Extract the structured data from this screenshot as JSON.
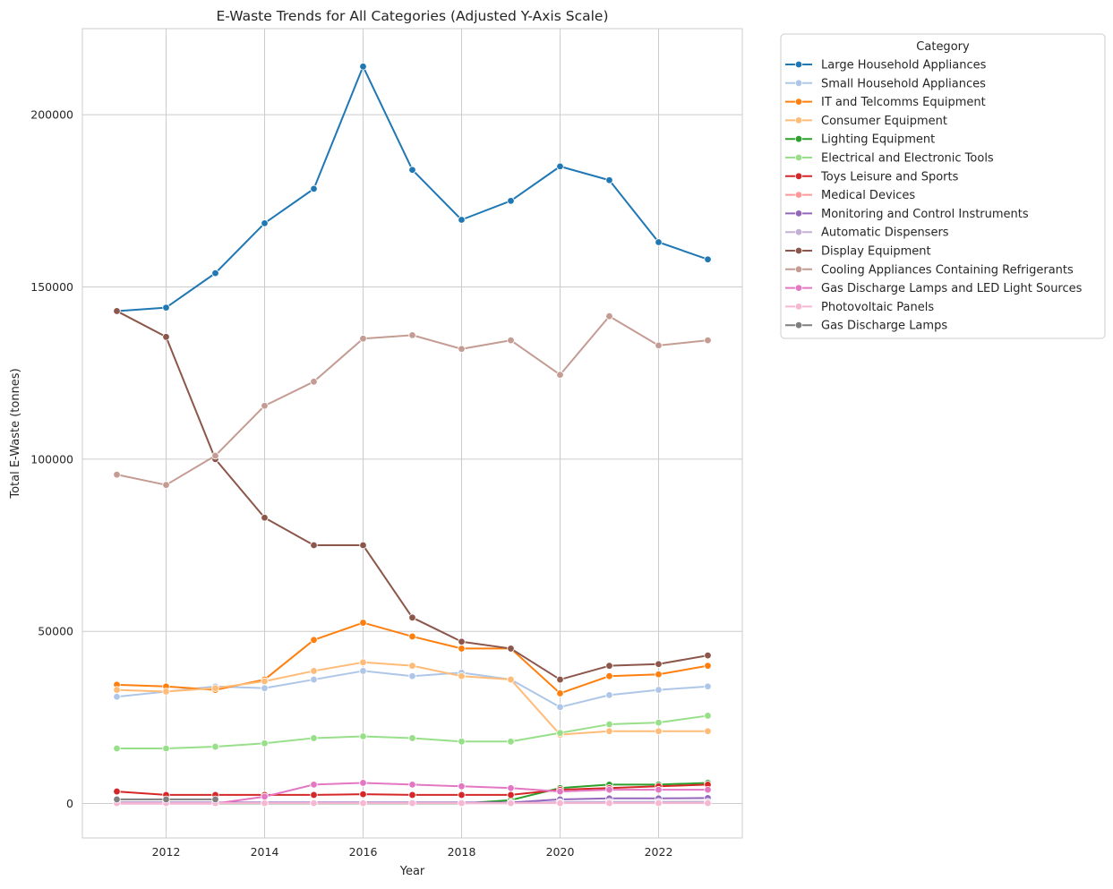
{
  "chart_data": {
    "type": "line",
    "title": "E-Waste Trends for All Categories (Adjusted Y-Axis Scale)",
    "xlabel": "Year",
    "ylabel": "Total E-Waste (tonnes)",
    "xlim": [
      2010.3,
      2023.7
    ],
    "ylim": [
      -10000,
      225000
    ],
    "x_ticks": [
      2012,
      2014,
      2016,
      2018,
      2020,
      2022
    ],
    "y_ticks": [
      0,
      50000,
      100000,
      150000,
      200000
    ],
    "grid": true,
    "legend": {
      "title": "Category",
      "placement": "outside-right"
    },
    "x": [
      2011,
      2012,
      2013,
      2014,
      2015,
      2016,
      2017,
      2018,
      2019,
      2020,
      2021,
      2022,
      2023
    ],
    "series": [
      {
        "name": "Large Household Appliances",
        "color": "#1f77b4",
        "values": [
          143000,
          144000,
          154000,
          168500,
          178500,
          214000,
          184000,
          169500,
          175000,
          185000,
          181000,
          163000,
          158000
        ]
      },
      {
        "name": "Small Household Appliances",
        "color": "#aec7e8",
        "values": [
          31000,
          32500,
          34000,
          33500,
          36000,
          38500,
          37000,
          38000,
          36000,
          28000,
          31500,
          33000,
          34000
        ]
      },
      {
        "name": "IT and Telcomms Equipment",
        "color": "#ff7f0e",
        "values": [
          34500,
          34000,
          33000,
          36000,
          47500,
          52500,
          48500,
          45000,
          45000,
          32000,
          37000,
          37500,
          40000
        ]
      },
      {
        "name": "Consumer Equipment",
        "color": "#ffbb78",
        "values": [
          33000,
          32500,
          33500,
          35500,
          38500,
          41000,
          40000,
          37000,
          36000,
          20000,
          21000,
          21000,
          21000
        ]
      },
      {
        "name": "Lighting Equipment",
        "color": "#2ca02c",
        "values": [
          0,
          0,
          0,
          0,
          0,
          0,
          0,
          0,
          1000,
          4500,
          5500,
          5500,
          6000
        ]
      },
      {
        "name": "Electrical and Electronic Tools",
        "color": "#98df8a",
        "values": [
          16000,
          16000,
          16500,
          17500,
          19000,
          19500,
          19000,
          18000,
          18000,
          20500,
          23000,
          23500,
          25500
        ]
      },
      {
        "name": "Toys Leisure and Sports",
        "color": "#d62728",
        "values": [
          3500,
          2500,
          2500,
          2500,
          2500,
          2700,
          2500,
          2500,
          2500,
          4000,
          4500,
          5000,
          5500
        ]
      },
      {
        "name": "Medical Devices",
        "color": "#ff9896",
        "values": [
          100,
          100,
          100,
          100,
          100,
          100,
          100,
          100,
          100,
          300,
          400,
          400,
          500
        ]
      },
      {
        "name": "Monitoring and Control Instruments",
        "color": "#9467bd",
        "values": [
          300,
          300,
          300,
          300,
          300,
          300,
          300,
          300,
          300,
          1200,
          1500,
          1500,
          1600
        ]
      },
      {
        "name": "Automatic Dispensers",
        "color": "#c5b0d5",
        "values": [
          100,
          100,
          100,
          100,
          100,
          100,
          100,
          100,
          100,
          400,
          500,
          500,
          500
        ]
      },
      {
        "name": "Display Equipment",
        "color": "#8c564b",
        "values": [
          143000,
          135500,
          100000,
          83000,
          75000,
          75000,
          54000,
          47000,
          45000,
          36000,
          40000,
          40500,
          43000
        ]
      },
      {
        "name": "Cooling Appliances Containing Refrigerants",
        "color": "#c49c94",
        "values": [
          95500,
          92500,
          101000,
          115500,
          122500,
          135000,
          136000,
          132000,
          134500,
          124500,
          141500,
          133000,
          134500
        ]
      },
      {
        "name": "Gas Discharge Lamps and LED Light Sources",
        "color": "#e377c2",
        "values": [
          0,
          0,
          0,
          2000,
          5500,
          6000,
          5500,
          5000,
          4500,
          3500,
          4000,
          4000,
          4000
        ]
      },
      {
        "name": "Photovoltaic Panels",
        "color": "#f7b6d2",
        "values": [
          100,
          100,
          100,
          100,
          100,
          100,
          100,
          100,
          100,
          100,
          100,
          100,
          100
        ]
      },
      {
        "name": "Gas Discharge Lamps",
        "color": "#7f7f7f",
        "values": [
          1200,
          1200,
          1200,
          null,
          null,
          null,
          null,
          null,
          null,
          null,
          null,
          null,
          null
        ]
      }
    ]
  }
}
